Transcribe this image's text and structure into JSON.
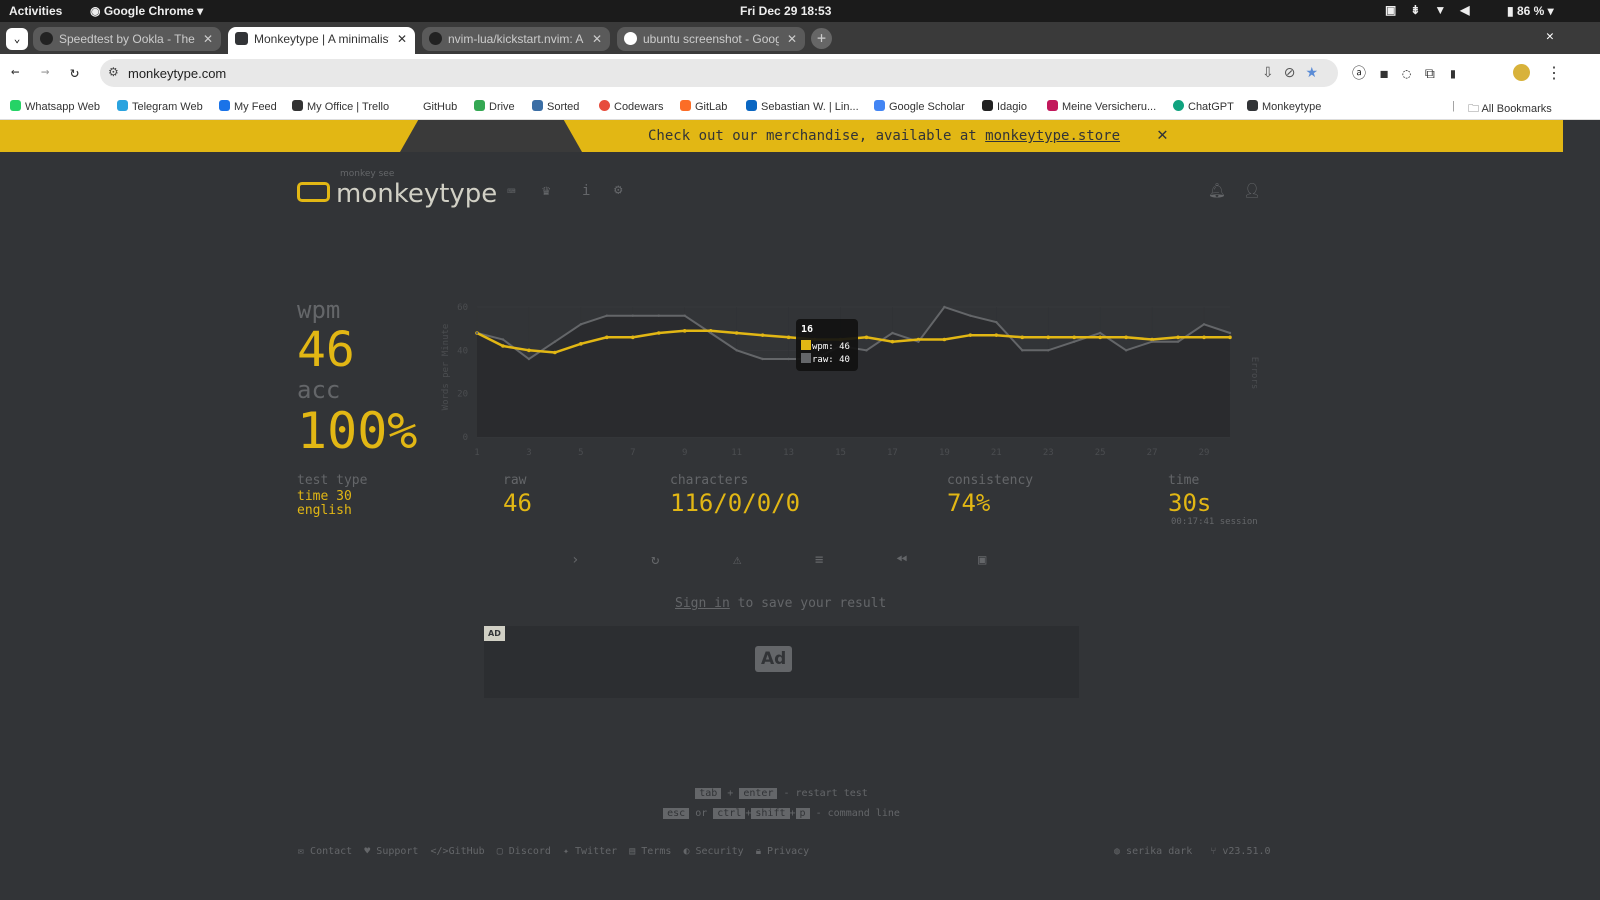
{
  "os": {
    "activities": "Activities",
    "app": "Google Chrome",
    "clock": "Fri Dec 29  18:53",
    "battery": "86 %"
  },
  "tabs": [
    {
      "label": "Speedtest by Ookla - The Gl"
    },
    {
      "label": "Monkeytype | A minimalistic"
    },
    {
      "label": "nvim-lua/kickstart.nvim: A l"
    },
    {
      "label": "ubuntu screenshot - Google"
    }
  ],
  "address": {
    "url": "monkeytype.com"
  },
  "bookmarks": [
    {
      "label": "Whatsapp Web",
      "color": "#25d366"
    },
    {
      "label": "Telegram Web",
      "color": "#2aa3df"
    },
    {
      "label": "My Feed",
      "color": "#1a73e8"
    },
    {
      "label": "My Office | Trello",
      "color": "#333333"
    },
    {
      "label": "GitHub",
      "color": "#ffffff"
    },
    {
      "label": "Drive",
      "color": "#34a853"
    },
    {
      "label": "Sorted",
      "color": "#3b6ea5"
    },
    {
      "label": "Codewars",
      "color": "#e74c3c"
    },
    {
      "label": "GitLab",
      "color": "#fc6d26"
    },
    {
      "label": "Sebastian W. | Lin...",
      "color": "#0a66c2"
    },
    {
      "label": "Google Scholar",
      "color": "#4285f4"
    },
    {
      "label": "Idagio",
      "color": "#222222"
    },
    {
      "label": "Meine Versicheru...",
      "color": "#c2185b"
    },
    {
      "label": "ChatGPT",
      "color": "#10a37f"
    },
    {
      "label": "Monkeytype",
      "color": "#323437"
    }
  ],
  "all_bookmarks": "All Bookmarks",
  "banner": {
    "text": "Check out our merchandise, available at ",
    "link": "monkeytype.store"
  },
  "logo": {
    "top": "monkey see",
    "name": "monkeytype"
  },
  "colors": {
    "main": "#e2b714",
    "sub": "#646669",
    "bg": "#323437",
    "text": "#d1d0c5"
  },
  "result": {
    "wpm_label": "wpm",
    "wpm": "46",
    "acc_label": "acc",
    "acc": "100%",
    "test_type_label": "test type",
    "test_type_1": "time 30",
    "test_type_2": "english",
    "raw_label": "raw",
    "raw": "46",
    "characters_label": "characters",
    "characters": "116/0/0/0",
    "consistency_label": "consistency",
    "consistency": "74%",
    "time_label": "time",
    "time": "30s",
    "session": "00:17:41 session"
  },
  "chart_data": {
    "type": "line",
    "ylabel": "Words per Minute",
    "y2label": "Errors",
    "ylim": [
      0,
      60
    ],
    "yticks": [
      0,
      20,
      40,
      60
    ],
    "x": [
      1,
      2,
      3,
      4,
      5,
      6,
      7,
      8,
      9,
      10,
      11,
      12,
      13,
      14,
      15,
      16,
      17,
      18,
      19,
      20,
      21,
      22,
      23,
      24,
      25,
      26,
      27,
      28,
      29,
      30
    ],
    "xticks": [
      1,
      3,
      5,
      7,
      9,
      11,
      13,
      15,
      17,
      19,
      21,
      23,
      25,
      27,
      29
    ],
    "series": [
      {
        "name": "wpm",
        "color": "#e2b714",
        "values": [
          48,
          42,
          40,
          39,
          43,
          46,
          46,
          48,
          49,
          49,
          48,
          47,
          46,
          45,
          45,
          46,
          44,
          45,
          45,
          47,
          47,
          46,
          46,
          46,
          46,
          46,
          45,
          46,
          46,
          46
        ]
      },
      {
        "name": "raw",
        "color": "#646669",
        "values": [
          48,
          45,
          36,
          44,
          52,
          56,
          56,
          56,
          56,
          48,
          40,
          36,
          36,
          36,
          42,
          40,
          48,
          44,
          60,
          56,
          53,
          40,
          40,
          44,
          48,
          40,
          44,
          44,
          52,
          48
        ]
      }
    ],
    "tooltip": {
      "title": "16",
      "wpm": "wpm: 46",
      "raw": "raw: 40"
    }
  },
  "sign_in": {
    "link": "Sign in",
    "text": " to save your result"
  },
  "ad": {
    "badge": "AD",
    "label": "Ad"
  },
  "hints": {
    "tab": "tab",
    "plus": "+",
    "enter": "enter",
    "restart": "- restart test",
    "esc": "esc",
    "or": "or",
    "ctrl": "ctrl",
    "shift": "shift",
    "p": "p",
    "command": "- command line"
  },
  "footer": {
    "links": [
      "Contact",
      "Support",
      "GitHub",
      "Discord",
      "Twitter",
      "Terms",
      "Security",
      "Privacy"
    ],
    "theme": "serika dark",
    "version": "v23.51.0"
  }
}
